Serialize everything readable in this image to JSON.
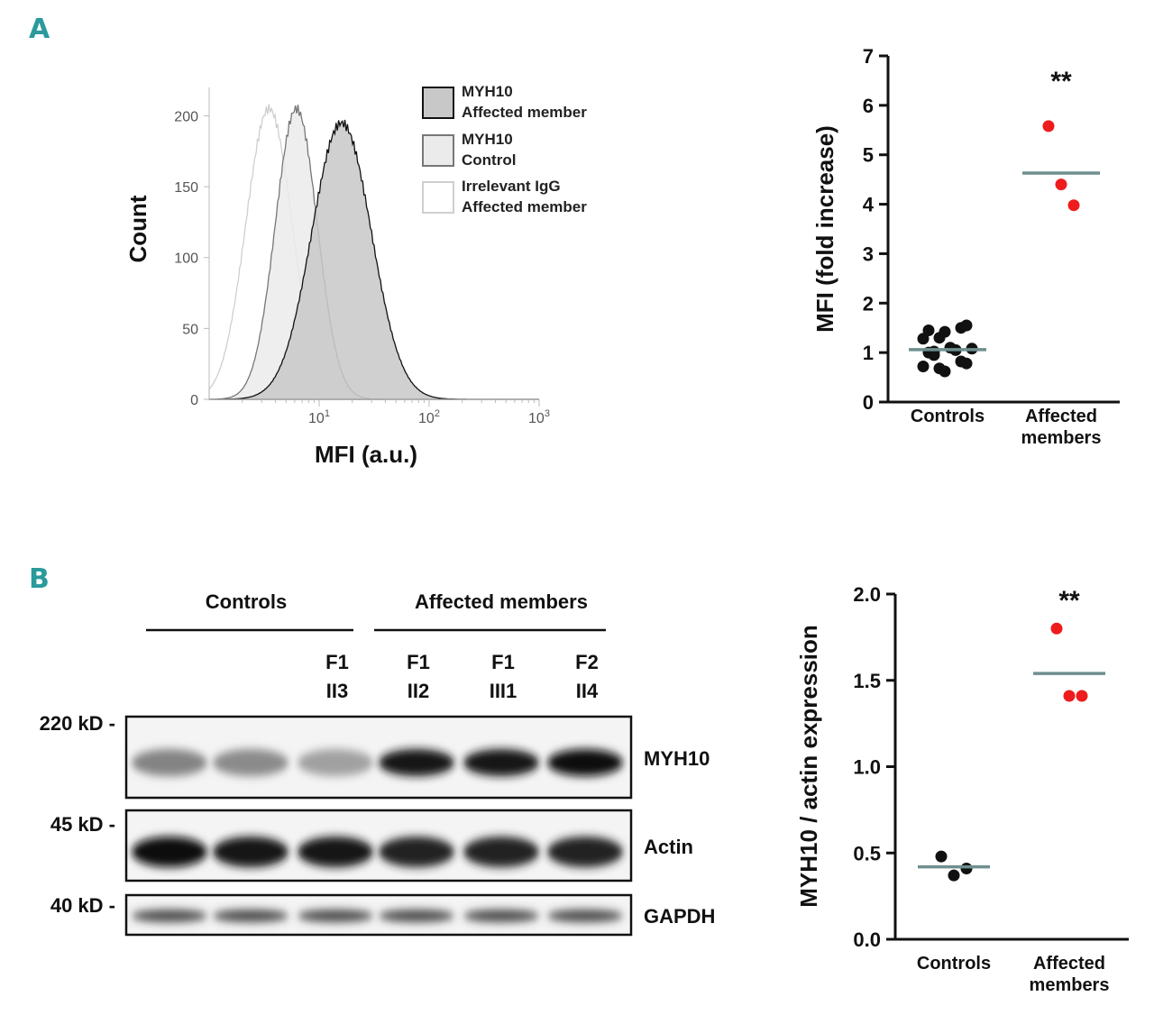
{
  "panels": {
    "a_label": "A",
    "b_label": "B"
  },
  "chart_data": [
    {
      "id": "histogram",
      "type": "area",
      "xlabel": "MFI (a.u.)",
      "ylabel": "Count",
      "x_scale": "log",
      "xlim": [
        1,
        1000
      ],
      "ylim": [
        0,
        220
      ],
      "y_ticks": [
        "0",
        "50",
        "100",
        "150",
        "200"
      ],
      "x_ticks": [
        {
          "base": "10",
          "exp": "1",
          "value": 10
        },
        {
          "base": "10",
          "exp": "2",
          "value": 100
        },
        {
          "base": "10",
          "exp": "3",
          "value": 1000
        }
      ],
      "series": [
        {
          "name": "Irrelevant IgG Affected member",
          "label_line1": "Irrelevant IgG",
          "label_line2": "Affected member",
          "peak_x": 3.5,
          "peak_y": 205,
          "log_sigma": 0.21,
          "fill": "#ffffff",
          "stroke": "#cfcfcf"
        },
        {
          "name": "MYH10 Control",
          "label_line1": "MYH10",
          "label_line2": "Control",
          "peak_x": 6.2,
          "peak_y": 205,
          "log_sigma": 0.19,
          "fill": "#ebebeb",
          "stroke": "#777777"
        },
        {
          "name": "MYH10 Affected member",
          "label_line1": "MYH10",
          "label_line2": "Affected member",
          "peak_x": 16,
          "peak_y": 195,
          "log_sigma": 0.27,
          "fill": "#c8c8c8",
          "stroke": "#111111"
        }
      ]
    },
    {
      "id": "mfi_scatter",
      "type": "scatter",
      "ylabel": "MFI (fold increase)",
      "ylim": [
        0,
        7
      ],
      "y_ticks": [
        "0",
        "1",
        "2",
        "3",
        "4",
        "5",
        "6",
        "7"
      ],
      "categories": [
        "Controls",
        "Affected members"
      ],
      "category_lines": [
        [
          "Controls"
        ],
        [
          "Affected",
          "members"
        ]
      ],
      "significance": "**",
      "groups": [
        {
          "name": "Controls",
          "color": "#111111",
          "mean": 1.06,
          "points": [
            0.72,
            0.68,
            0.62,
            0.82,
            0.78,
            1.0,
            1.02,
            1.1,
            1.05,
            1.08,
            1.28,
            1.3,
            1.42,
            1.5,
            1.55,
            1.45,
            0.95
          ]
        },
        {
          "name": "Affected members",
          "color": "#ee1c1c",
          "mean": 4.63,
          "points": [
            5.58,
            4.4,
            3.98
          ]
        }
      ]
    },
    {
      "id": "western_scatter",
      "type": "scatter",
      "ylabel": "MYH10 / actin expression",
      "ylim": [
        0,
        2.0
      ],
      "y_ticks": [
        "0.0",
        "0.5",
        "1.0",
        "1.5",
        "2.0"
      ],
      "categories": [
        "Controls",
        "Affected members"
      ],
      "category_lines": [
        [
          "Controls"
        ],
        [
          "Affected",
          "members"
        ]
      ],
      "significance": "**",
      "groups": [
        {
          "name": "Controls",
          "color": "#111111",
          "mean": 0.42,
          "points": [
            0.48,
            0.37,
            0.41
          ]
        },
        {
          "name": "Affected members",
          "color": "#ee1c1c",
          "mean": 1.54,
          "points": [
            1.8,
            1.41,
            1.41
          ]
        }
      ]
    }
  ],
  "western_blot": {
    "groups": [
      {
        "label": "Controls"
      },
      {
        "label": "Affected members"
      }
    ],
    "lanes": [
      {
        "line1": "",
        "line2": ""
      },
      {
        "line1": "",
        "line2": ""
      },
      {
        "line1": "F1",
        "line2": "II3"
      },
      {
        "line1": "F1",
        "line2": "II2"
      },
      {
        "line1": "F1",
        "line2": "III1"
      },
      {
        "line1": "F2",
        "line2": "II4"
      }
    ],
    "rows": [
      {
        "marker": "220 kD -",
        "protein": "MYH10",
        "intensities": [
          0.45,
          0.42,
          0.32,
          0.95,
          0.95,
          1.0
        ]
      },
      {
        "marker": "45 kD -",
        "protein": "Actin",
        "intensities": [
          1.0,
          0.95,
          0.95,
          0.9,
          0.88,
          0.9
        ]
      },
      {
        "marker": "40 kD -",
        "protein": "GAPDH",
        "intensities": [
          0.7,
          0.7,
          0.7,
          0.7,
          0.7,
          0.7
        ]
      }
    ]
  }
}
